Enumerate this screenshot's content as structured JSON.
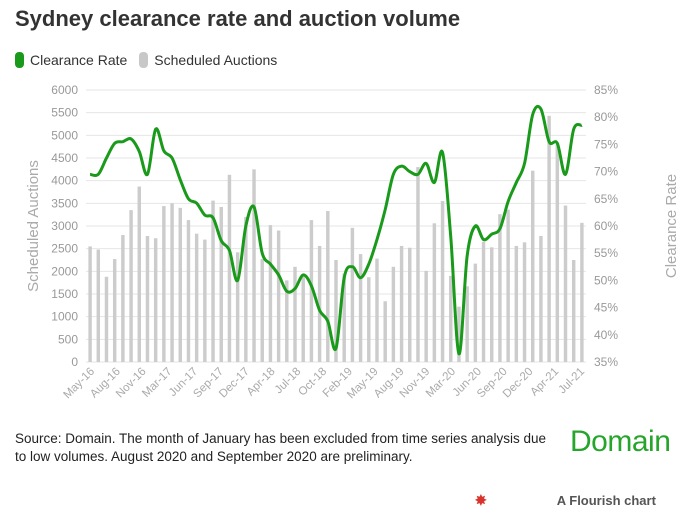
{
  "title": "Sydney clearance rate and auction volume",
  "legend": [
    {
      "label": "Clearance Rate",
      "color": "#1a9a1a"
    },
    {
      "label": "Scheduled Auctions",
      "color": "#cccccc"
    }
  ],
  "footer": {
    "source": "Source: Domain. The month of January has been excluded from time series analysis due to low volumes. August 2020 and September 2020 are preliminary.",
    "brand": "Domain",
    "flourish": "A Flourish chart",
    "flourish_icon": "flourish-star-icon"
  },
  "chart_data": {
    "type": "bar+line",
    "x_tick_labels": [
      "May-16",
      "Aug-16",
      "Nov-16",
      "Mar-17",
      "Jun-17",
      "Sep-17",
      "Dec-17",
      "Apr-18",
      "Jul-18",
      "Oct-18",
      "Feb-19",
      "May-19",
      "Aug-19",
      "Nov-19",
      "Mar-20",
      "Jun-20",
      "Sep-20",
      "Dec-20",
      "Apr-21",
      "Jul-21"
    ],
    "series": [
      {
        "name": "Scheduled Auctions",
        "type": "bar",
        "axis": "left",
        "color": "#cccccc",
        "values": [
          2550,
          2480,
          1880,
          2270,
          2800,
          3350,
          3870,
          2780,
          2730,
          3440,
          3500,
          3400,
          3130,
          2830,
          2700,
          3560,
          3420,
          4130,
          2420,
          3200,
          4250,
          2270,
          3020,
          2900,
          1800,
          2100,
          1900,
          3130,
          2560,
          3330,
          2250,
          1950,
          2960,
          2380,
          1870,
          2280,
          1340,
          2100,
          2560,
          2520,
          4300,
          2010,
          3060,
          3550,
          1900,
          1220,
          1670,
          2170,
          2650,
          2530,
          3260,
          3360,
          2560,
          2640,
          4220,
          2780,
          5430,
          4800,
          3450,
          2250,
          3070
        ]
      },
      {
        "name": "Clearance Rate",
        "type": "line",
        "axis": "right",
        "color": "#1a9a1a",
        "values": [
          69.5,
          69.5,
          72.5,
          75.2,
          75.5,
          76.0,
          73.7,
          69.5,
          77.8,
          73.8,
          72.5,
          68.5,
          65.0,
          64.2,
          62.0,
          61.5,
          57.3,
          55.5,
          50.0,
          60.0,
          63.5,
          55.0,
          53.0,
          51.0,
          48.0,
          48.5,
          51.0,
          49.0,
          44.5,
          42.5,
          37.5,
          50.5,
          52.5,
          50.5,
          53.0,
          57.5,
          63.0,
          69.5,
          71.0,
          70.0,
          69.5,
          71.5,
          68.0,
          73.5,
          58.0,
          36.5,
          54.5,
          60.0,
          57.5,
          58.5,
          59.5,
          64.5,
          68.0,
          71.5,
          80.5,
          81.5,
          75.5,
          75.2,
          69.5,
          77.8,
          78.5
        ]
      }
    ],
    "y_left": {
      "label": "Scheduled Auctions",
      "min": 0,
      "max": 6000,
      "ticks": [
        "0",
        "500",
        "1000",
        "1500",
        "2000",
        "2500",
        "3000",
        "3500",
        "4000",
        "4500",
        "5000",
        "5500",
        "6000"
      ]
    },
    "y_right": {
      "label": "Clearance Rate",
      "min": 35,
      "max": 85,
      "ticks": [
        "35%",
        "40%",
        "45%",
        "50%",
        "55%",
        "60%",
        "65%",
        "70%",
        "75%",
        "80%",
        "85%"
      ]
    },
    "grid": true,
    "legend_position": "top-left"
  }
}
